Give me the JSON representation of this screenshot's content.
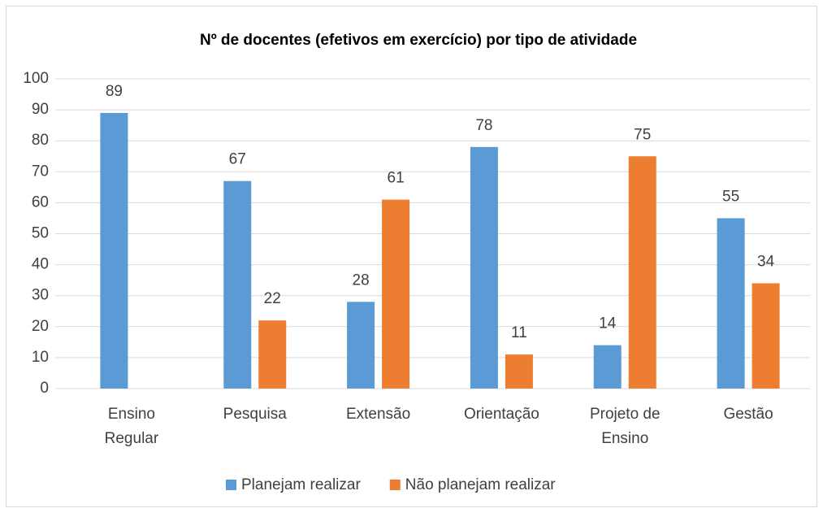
{
  "chart_data": {
    "type": "bar",
    "title": "Nº de docentes (efetivos em exercício) por tipo de atividade",
    "categories": [
      [
        "Ensino",
        "Regular"
      ],
      "Pesquisa",
      "Extensão",
      "Orientação",
      [
        "Projeto de",
        "Ensino"
      ],
      "Gestão"
    ],
    "series": [
      {
        "name": "Planejam realizar",
        "color": "#5b9bd5",
        "values": [
          89,
          67,
          28,
          78,
          14,
          55
        ]
      },
      {
        "name": "Não planejam realizar",
        "color": "#ed7d31",
        "values": [
          null,
          22,
          61,
          11,
          75,
          34
        ]
      }
    ],
    "ylim": [
      0,
      100
    ],
    "yticks": [
      0,
      10,
      20,
      30,
      40,
      50,
      60,
      70,
      80,
      90,
      100
    ],
    "grid": true,
    "legend": "bottom"
  }
}
